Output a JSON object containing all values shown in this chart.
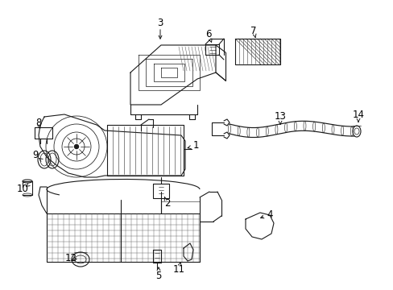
{
  "fig_width": 4.89,
  "fig_height": 3.6,
  "dpi": 100,
  "bg": "#ffffff",
  "lc": "#1a1a1a",
  "label_fs": 8.5
}
